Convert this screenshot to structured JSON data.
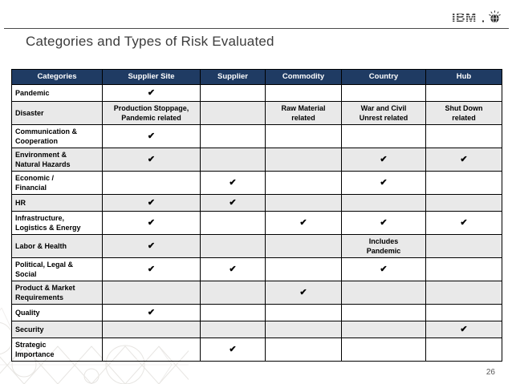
{
  "slide": {
    "title": "Categories and Types of Risk Evaluated",
    "page_number": "26",
    "logo_text": "IBM"
  },
  "colors": {
    "header_bg": "#1F3B63",
    "header_text": "#FFFFFF",
    "row_alt_bg": "#E9E9E9",
    "border": "#000000",
    "title_text": "#3C3C3C",
    "page_number_text": "#595959",
    "check": "#000000"
  },
  "icons": {
    "ibm_logo": "ibm-8bar-logo",
    "globe": "smarter-planet-globe-icon"
  },
  "table": {
    "check_glyph": "✔",
    "columns": [
      "Categories",
      "Supplier Site",
      "Supplier",
      "Commodity",
      "Country",
      "Hub"
    ],
    "rows": [
      {
        "category": "Pandemic",
        "cells": [
          "✔",
          "",
          "",
          "",
          ""
        ]
      },
      {
        "category": "Disaster",
        "cells": [
          "Production Stoppage,\nPandemic related",
          "",
          "Raw Material\nrelated",
          "War and Civil\nUnrest related",
          "Shut Down\nrelated"
        ]
      },
      {
        "category": "Communication &\nCooperation",
        "cells": [
          "✔",
          "",
          "",
          "",
          ""
        ]
      },
      {
        "category": "Environment &\nNatural Hazards",
        "cells": [
          "✔",
          "",
          "",
          "✔",
          "✔"
        ]
      },
      {
        "category": "Economic /\nFinancial",
        "cells": [
          "",
          "✔",
          "",
          "✔",
          ""
        ]
      },
      {
        "category": "HR",
        "cells": [
          "✔",
          "✔",
          "",
          "",
          ""
        ]
      },
      {
        "category": "Infrastructure,\nLogistics & Energy",
        "cells": [
          "✔",
          "",
          "✔",
          "✔",
          "✔"
        ]
      },
      {
        "category": "Labor & Health",
        "cells": [
          "✔",
          "",
          "",
          "Includes\nPandemic",
          ""
        ]
      },
      {
        "category": "Political, Legal &\nSocial",
        "cells": [
          "✔",
          "✔",
          "",
          "✔",
          ""
        ]
      },
      {
        "category": "Product & Market\nRequirements",
        "cells": [
          "",
          "",
          "✔",
          "",
          ""
        ]
      },
      {
        "category": "Quality",
        "cells": [
          "✔",
          "",
          "",
          "",
          ""
        ]
      },
      {
        "category": "Security",
        "cells": [
          "",
          "",
          "",
          "",
          "✔"
        ]
      },
      {
        "category": "Strategic\nImportance",
        "cells": [
          "",
          "✔",
          "",
          "",
          ""
        ]
      }
    ]
  }
}
